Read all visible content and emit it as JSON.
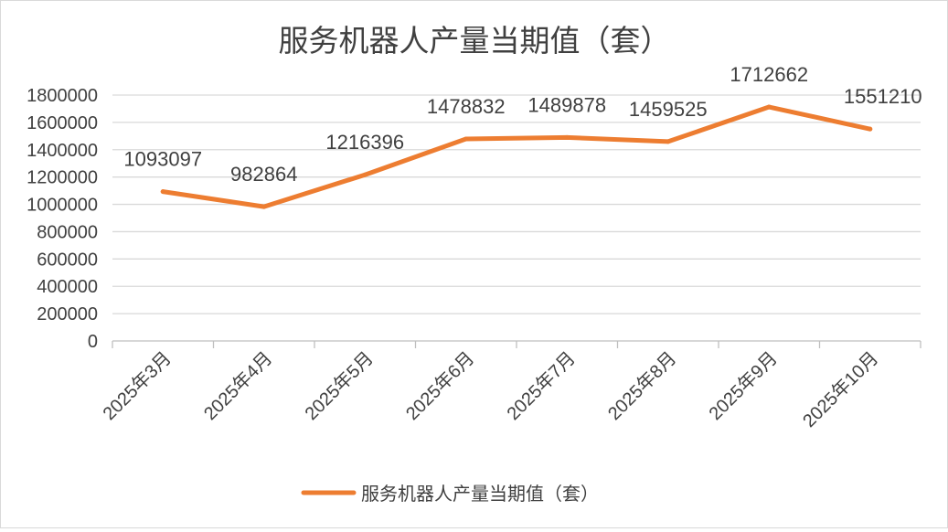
{
  "chart_data": {
    "type": "line",
    "title": "服务机器人产量当期值（套）",
    "categories": [
      "2025年3月",
      "2025年4月",
      "2025年5月",
      "2025年6月",
      "2025年7月",
      "2025年8月",
      "2025年9月",
      "2025年10月"
    ],
    "series": [
      {
        "name": "服务机器人产量当期值（套）",
        "values": [
          1093097,
          982864,
          1216396,
          1478832,
          1489878,
          1459525,
          1712662,
          1551210
        ],
        "color": "#ED7D31"
      }
    ],
    "ylim": [
      0,
      1800000
    ],
    "yticks": [
      "0",
      "200000",
      "400000",
      "600000",
      "800000",
      "1000000",
      "1200000",
      "1400000",
      "1600000",
      "1800000"
    ],
    "grid": true,
    "data_labels": true,
    "legend": "bottom"
  }
}
